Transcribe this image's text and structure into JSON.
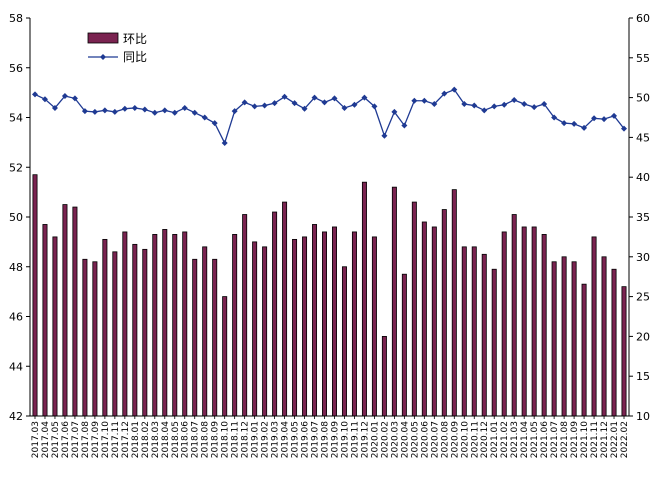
{
  "chart_data": {
    "type": "bar+line",
    "categories": [
      "2017.03",
      "2017.04",
      "2017.05",
      "2017.06",
      "2017.07",
      "2017.08",
      "2017.09",
      "2017.10",
      "2017.11",
      "2017.12",
      "2018.01",
      "2018.02",
      "2018.03",
      "2018.04",
      "2018.05",
      "2018.06",
      "2018.07",
      "2018.08",
      "2018.09",
      "2018.10",
      "2018.11",
      "2018.12",
      "2019.01",
      "2019.02",
      "2019.03",
      "2019.04",
      "2019.05",
      "2019.06",
      "2019.07",
      "2019.08",
      "2019.09",
      "2019.10",
      "2019.11",
      "2019.12",
      "2020.01",
      "2020.02",
      "2020.03",
      "2020.04",
      "2020.05",
      "2020.06",
      "2020.07",
      "2020.08",
      "2020.09",
      "2020.10",
      "2020.11",
      "2020.12",
      "2021.01",
      "2021.02",
      "2021.03",
      "2021.04",
      "2021.05",
      "2021.06",
      "2021.07",
      "2021.08",
      "2021.09",
      "2021.10",
      "2021.11",
      "2021.12",
      "2022.01",
      "2022.02"
    ],
    "series": [
      {
        "name": "环比",
        "kind": "bar",
        "axis": "left",
        "color": "#7a2350",
        "values": [
          51.7,
          49.7,
          49.2,
          50.5,
          50.4,
          48.3,
          48.2,
          49.1,
          48.6,
          49.4,
          48.9,
          48.7,
          49.3,
          49.5,
          49.3,
          49.4,
          48.3,
          48.8,
          48.3,
          46.8,
          49.3,
          50.1,
          49.0,
          48.8,
          50.2,
          50.6,
          49.1,
          49.2,
          49.7,
          49.4,
          49.6,
          48.0,
          49.4,
          51.4,
          49.2,
          45.2,
          51.2,
          47.7,
          50.6,
          49.8,
          49.6,
          50.3,
          51.1,
          48.8,
          48.8,
          48.5,
          47.9,
          49.4,
          50.1,
          49.6,
          49.6,
          49.3,
          48.2,
          48.4,
          48.2,
          47.3,
          49.2,
          48.4,
          47.9,
          47.2
        ]
      },
      {
        "name": "同比",
        "kind": "line",
        "axis": "right",
        "color": "#1f3a93",
        "values": [
          50.4,
          49.8,
          48.7,
          50.2,
          49.9,
          48.3,
          48.2,
          48.4,
          48.2,
          48.6,
          48.7,
          48.5,
          48.1,
          48.4,
          48.1,
          48.7,
          48.1,
          47.5,
          46.8,
          44.3,
          48.3,
          49.4,
          48.9,
          49.0,
          49.3,
          50.1,
          49.3,
          48.6,
          50.0,
          49.4,
          49.9,
          48.7,
          49.1,
          50.0,
          48.9,
          45.2,
          48.2,
          46.5,
          49.6,
          49.6,
          49.2,
          50.5,
          51.0,
          49.2,
          49.0,
          48.4,
          48.9,
          49.1,
          49.7,
          49.2,
          48.8,
          49.2,
          47.5,
          46.8,
          46.7,
          46.2,
          47.4,
          47.3,
          47.7,
          46.1
        ]
      }
    ],
    "left_axis": {
      "min": 42,
      "max": 58,
      "step": 2
    },
    "right_axis": {
      "min": 10,
      "max": 60,
      "step": 5
    },
    "legend": {
      "position": "top-left",
      "entries": [
        "环比",
        "同比"
      ]
    },
    "grid": false
  }
}
